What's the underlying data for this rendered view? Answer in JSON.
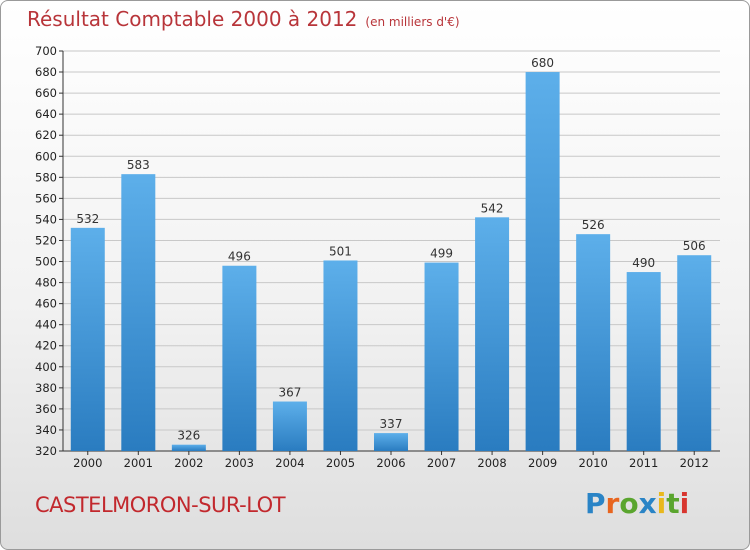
{
  "header": {
    "title": "Résultat Comptable 2000 à 2012",
    "unit": "(en milliers d'€)"
  },
  "footer": {
    "city": "CASTELMORON-SUR-LOT"
  },
  "logo": {
    "letters": [
      {
        "ch": "P",
        "color": "#2a84c6"
      },
      {
        "ch": "r",
        "color": "#e8651f"
      },
      {
        "ch": "o",
        "color": "#5aa52e"
      },
      {
        "ch": "x",
        "color": "#2a84c6"
      },
      {
        "ch": "i",
        "color": "#e9b81d"
      },
      {
        "ch": "t",
        "color": "#5aa52e"
      },
      {
        "ch": "i",
        "color": "#d8362f"
      }
    ]
  },
  "chart_data": {
    "type": "bar",
    "title": "Résultat Comptable 2000 à 2012",
    "subtitle": "(en milliers d'€)",
    "categories": [
      "2000",
      "2001",
      "2002",
      "2003",
      "2004",
      "2005",
      "2006",
      "2007",
      "2008",
      "2009",
      "2010",
      "2011",
      "2012"
    ],
    "values": [
      532,
      583,
      326,
      496,
      367,
      501,
      337,
      499,
      542,
      680,
      526,
      490,
      506
    ],
    "ylim": [
      320,
      700
    ],
    "yticks": [
      320,
      340,
      360,
      380,
      400,
      420,
      440,
      460,
      480,
      500,
      520,
      540,
      560,
      580,
      600,
      620,
      640,
      660,
      680,
      700
    ],
    "grid": true,
    "bar_color_top": "#5dafea",
    "bar_color_bottom": "#2a7cc0"
  }
}
